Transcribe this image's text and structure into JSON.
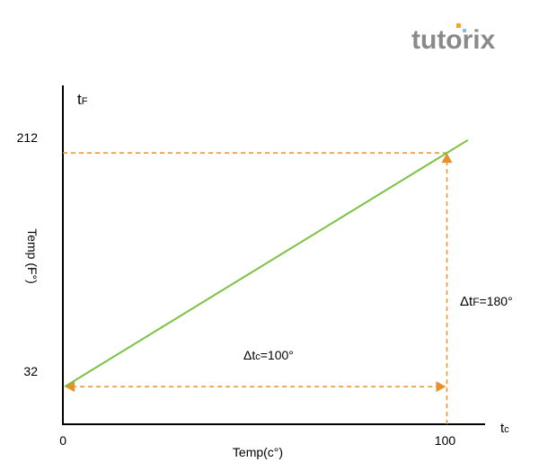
{
  "logo": "tutorix",
  "chart_data": {
    "type": "line",
    "y_symbol": [
      "t",
      "F"
    ],
    "x_symbol": [
      "t",
      "c"
    ],
    "ylabel": "Temp (F°)",
    "xlabel": "Temp(c°)",
    "x": [
      0,
      100,
      105.5
    ],
    "values": [
      32,
      212,
      221.9
    ],
    "color": "#7dc242",
    "xlim": [
      -0.5,
      110
    ],
    "ylim": [
      3,
      264
    ],
    "xticks": [
      0,
      100
    ],
    "yticks": [
      32,
      212
    ],
    "annotations": [
      [
        "Δt",
        "c",
        "=100°"
      ],
      [
        "Δt",
        "F",
        "=180°"
      ]
    ],
    "guide_color": "#e8902a"
  }
}
